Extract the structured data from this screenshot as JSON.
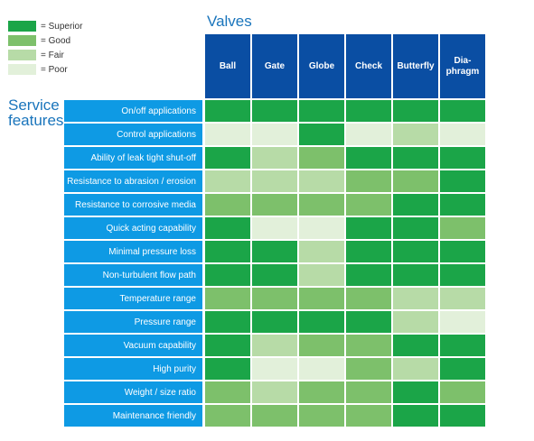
{
  "chart_data": {
    "type": "heatmap",
    "title": "Valves",
    "row_axis_label": "Service features",
    "columns": [
      "Ball",
      "Gate",
      "Globe",
      "Check",
      "Butterfly",
      "Dia-\nphragm"
    ],
    "rows": [
      "On/off applications",
      "Control applications",
      "Ability of leak tight shut-off",
      "Resistance to abrasion / erosion",
      "Resistance to corrosive media",
      "Quick acting capability",
      "Minimal pressure loss",
      "Non-turbulent flow path",
      "Temperature range",
      "Pressure range",
      "Vacuum capability",
      "High purity",
      "Weight / size ratio",
      "Maintenance friendly"
    ],
    "scale": [
      {
        "key": "superior",
        "label": "= Superior",
        "color": "#1ba548"
      },
      {
        "key": "good",
        "label": "= Good",
        "color": "#7dc06b"
      },
      {
        "key": "fair",
        "label": "= Fair",
        "color": "#b7dba7"
      },
      {
        "key": "poor",
        "label": "= Poor",
        "color": "#e2f0da"
      }
    ],
    "ratings": [
      [
        "superior",
        "superior",
        "superior",
        "superior",
        "superior",
        "superior"
      ],
      [
        "poor",
        "poor",
        "superior",
        "poor",
        "fair",
        "poor"
      ],
      [
        "superior",
        "fair",
        "good",
        "superior",
        "superior",
        "superior"
      ],
      [
        "fair",
        "fair",
        "fair",
        "good",
        "good",
        "superior"
      ],
      [
        "good",
        "good",
        "good",
        "good",
        "superior",
        "superior"
      ],
      [
        "superior",
        "poor",
        "poor",
        "superior",
        "superior",
        "good"
      ],
      [
        "superior",
        "superior",
        "fair",
        "superior",
        "superior",
        "superior"
      ],
      [
        "superior",
        "superior",
        "fair",
        "superior",
        "superior",
        "superior"
      ],
      [
        "good",
        "good",
        "good",
        "good",
        "fair",
        "fair"
      ],
      [
        "superior",
        "superior",
        "superior",
        "superior",
        "fair",
        "poor"
      ],
      [
        "superior",
        "fair",
        "good",
        "good",
        "superior",
        "superior"
      ],
      [
        "superior",
        "poor",
        "poor",
        "good",
        "fair",
        "superior"
      ],
      [
        "good",
        "fair",
        "good",
        "good",
        "superior",
        "good"
      ],
      [
        "good",
        "good",
        "good",
        "good",
        "superior",
        "superior"
      ]
    ]
  }
}
